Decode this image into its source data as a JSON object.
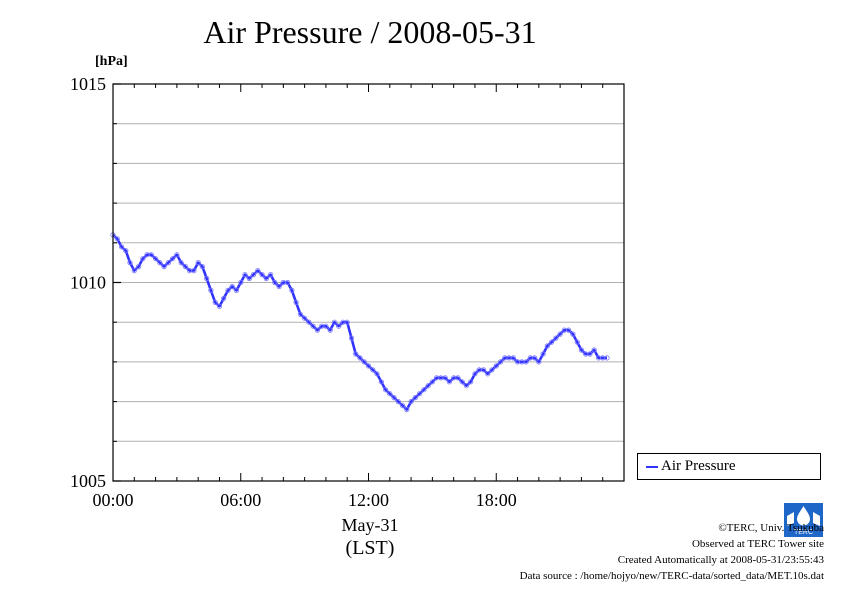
{
  "title": "Air Pressure / 2008-05-31",
  "unit_label": "[hPa]",
  "x_date_label": "May-31",
  "x_zone_label": "(LST)",
  "legend": {
    "label": "Air Pressure"
  },
  "colors": {
    "series": "#3333ff",
    "grid": "#b0b0b0",
    "axis": "#000000"
  },
  "footer": {
    "copyright": "©TERC, Univ. Tsukuba",
    "observed": "Observed at TERC Tower site",
    "created": "Created Automatically at 2008-05-31/23:55:43",
    "source": "Data source : /home/hojyo/new/TERC-data/sorted_data/MET.10s.dat"
  },
  "logo": {
    "text": "TERC",
    "icon": "terc-logo-icon"
  },
  "chart_data": {
    "type": "line",
    "title": "Air Pressure / 2008-05-31",
    "ylabel": "[hPa]",
    "xlabel": "",
    "xlim": [
      0,
      24
    ],
    "ylim": [
      1005,
      1015
    ],
    "y_ticks": [
      1005,
      1010,
      1015
    ],
    "y_minor_step": 1,
    "x_ticks": [
      {
        "value": 0,
        "label": "00:00"
      },
      {
        "value": 6,
        "label": "06:00"
      },
      {
        "value": 12,
        "label": "12:00"
      },
      {
        "value": 18,
        "label": "18:00"
      }
    ],
    "grid": true,
    "legend_position": "outside-right",
    "series": [
      {
        "name": "Air Pressure",
        "x": [
          0.0,
          0.2,
          0.4,
          0.6,
          0.8,
          1.0,
          1.2,
          1.4,
          1.6,
          1.8,
          2.0,
          2.2,
          2.4,
          2.6,
          2.8,
          3.0,
          3.2,
          3.4,
          3.6,
          3.8,
          4.0,
          4.2,
          4.4,
          4.6,
          4.8,
          5.0,
          5.2,
          5.4,
          5.6,
          5.8,
          6.0,
          6.2,
          6.4,
          6.6,
          6.8,
          7.0,
          7.2,
          7.4,
          7.6,
          7.8,
          8.0,
          8.2,
          8.4,
          8.6,
          8.8,
          9.0,
          9.2,
          9.4,
          9.6,
          9.8,
          10.0,
          10.2,
          10.4,
          10.6,
          10.8,
          11.0,
          11.2,
          11.4,
          11.6,
          11.8,
          12.0,
          12.2,
          12.4,
          12.6,
          12.8,
          13.0,
          13.2,
          13.4,
          13.6,
          13.8,
          14.0,
          14.2,
          14.4,
          14.6,
          14.8,
          15.0,
          15.2,
          15.4,
          15.6,
          15.8,
          16.0,
          16.2,
          16.4,
          16.6,
          16.8,
          17.0,
          17.2,
          17.4,
          17.6,
          17.8,
          18.0,
          18.2,
          18.4,
          18.6,
          18.8,
          19.0,
          19.2,
          19.4,
          19.6,
          19.8,
          20.0,
          20.2,
          20.4,
          20.6,
          20.8,
          21.0,
          21.2,
          21.4,
          21.6,
          21.8,
          22.0,
          22.2,
          22.4,
          22.6,
          22.8,
          23.0,
          23.2
        ],
        "values": [
          1011.2,
          1011.1,
          1010.9,
          1010.8,
          1010.5,
          1010.3,
          1010.4,
          1010.6,
          1010.7,
          1010.7,
          1010.6,
          1010.5,
          1010.4,
          1010.5,
          1010.6,
          1010.7,
          1010.5,
          1010.4,
          1010.3,
          1010.3,
          1010.5,
          1010.4,
          1010.1,
          1009.8,
          1009.5,
          1009.4,
          1009.6,
          1009.8,
          1009.9,
          1009.8,
          1010.0,
          1010.2,
          1010.1,
          1010.2,
          1010.3,
          1010.2,
          1010.1,
          1010.2,
          1010.0,
          1009.9,
          1010.0,
          1010.0,
          1009.8,
          1009.5,
          1009.2,
          1009.1,
          1009.0,
          1008.9,
          1008.8,
          1008.9,
          1008.9,
          1008.8,
          1009.0,
          1008.9,
          1009.0,
          1009.0,
          1008.6,
          1008.2,
          1008.1,
          1008.0,
          1007.9,
          1007.8,
          1007.7,
          1007.5,
          1007.3,
          1007.2,
          1007.1,
          1007.0,
          1006.9,
          1006.8,
          1007.0,
          1007.1,
          1007.2,
          1007.3,
          1007.4,
          1007.5,
          1007.6,
          1007.6,
          1007.6,
          1007.5,
          1007.6,
          1007.6,
          1007.5,
          1007.4,
          1007.5,
          1007.7,
          1007.8,
          1007.8,
          1007.7,
          1007.8,
          1007.9,
          1008.0,
          1008.1,
          1008.1,
          1008.1,
          1008.0,
          1008.0,
          1008.0,
          1008.1,
          1008.1,
          1008.0,
          1008.2,
          1008.4,
          1008.5,
          1008.6,
          1008.7,
          1008.8,
          1008.8,
          1008.7,
          1008.5,
          1008.3,
          1008.2,
          1008.2,
          1008.3,
          1008.1,
          1008.1,
          1008.1
        ]
      }
    ]
  }
}
